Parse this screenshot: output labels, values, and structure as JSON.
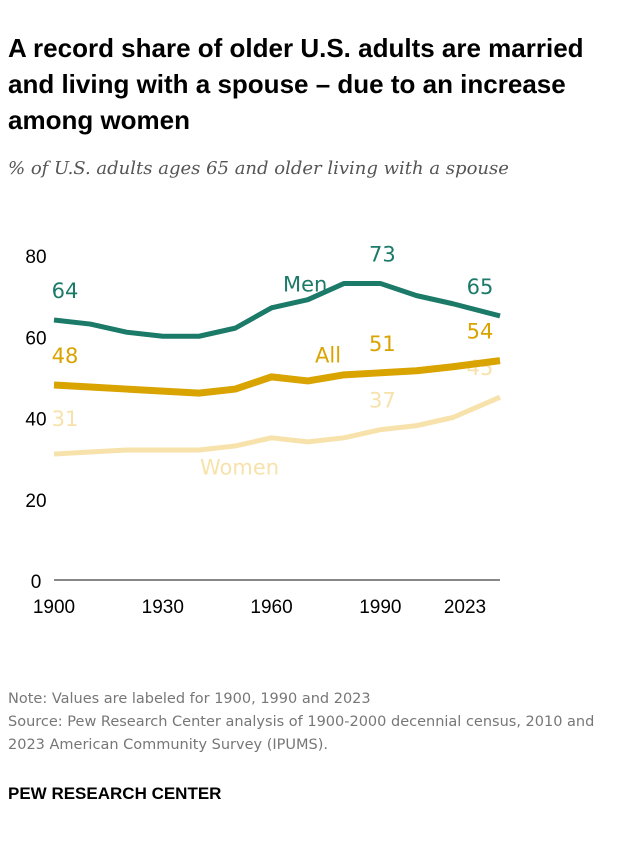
{
  "title": "A record share of older U.S. adults are married and living with a spouse – due to an increase among women",
  "subtitle": "% of U.S. adults ages 65 and older living with a spouse",
  "note": "Note: Values are labeled for 1900, 1990 and 2023",
  "source": "Source: Pew Research Center analysis of 1900-2000 decennial census, 2010 and 2023 American Community Survey (IPUMS).",
  "brand": "PEW RESEARCH CENTER",
  "chart_data": {
    "type": "line",
    "x": [
      1900,
      1910,
      1920,
      1930,
      1940,
      1950,
      1960,
      1970,
      1980,
      1990,
      2000,
      2010,
      2023
    ],
    "ylim": [
      0,
      80
    ],
    "yticks": [
      "0",
      "20",
      "40",
      "60",
      "80"
    ],
    "xticks": [
      "1900",
      "1930",
      "1960",
      "1990",
      "2023"
    ],
    "grid": false,
    "series": [
      {
        "name": "Men",
        "color": "#1b7a68",
        "values": [
          64,
          63,
          61,
          60,
          60,
          62,
          67,
          69,
          73,
          73,
          70,
          68,
          65
        ],
        "labels": [
          "64",
          "73",
          "65"
        ]
      },
      {
        "name": "All",
        "color": "#d9a300",
        "values": [
          48,
          47.5,
          47,
          46.5,
          46,
          47,
          50,
          49,
          50.5,
          51,
          51.5,
          52.5,
          54
        ],
        "labels": [
          "48",
          "51",
          "54"
        ]
      },
      {
        "name": "Women",
        "color": "#f7e2ab",
        "values": [
          31,
          31.5,
          32,
          32,
          32,
          33,
          35,
          34,
          35,
          37,
          38,
          40,
          45
        ],
        "labels": [
          "31",
          "37",
          "45"
        ]
      }
    ]
  }
}
